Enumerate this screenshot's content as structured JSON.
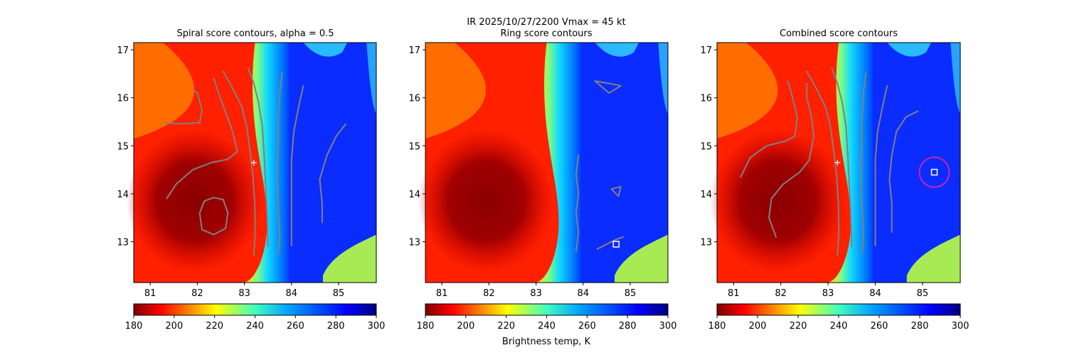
{
  "suptitle": "IR  2025/10/27/2200    Vmax = 45 kt",
  "colorbar_label": "Brightness temp, K",
  "chart_data": [
    {
      "type": "heatmap",
      "title": "Spiral score contours, alpha =  0.5",
      "xlim": [
        80.65,
        85.8
      ],
      "ylim": [
        12.15,
        17.15
      ],
      "xticks": [
        81,
        82,
        83,
        84,
        85
      ],
      "yticks": [
        13,
        14,
        15,
        16,
        17
      ],
      "colorbar": {
        "cmap": "jet_r",
        "range": [
          180,
          300
        ],
        "ticks": [
          180,
          200,
          220,
          240,
          260,
          280,
          300
        ]
      },
      "center_marker": {
        "shape": "plus",
        "x": 83.2,
        "y": 14.65
      },
      "contours": [
        [
          [
            81.35,
            13.9
          ],
          [
            81.55,
            14.2
          ],
          [
            81.9,
            14.5
          ],
          [
            82.3,
            14.65
          ],
          [
            82.65,
            14.72
          ],
          [
            82.85,
            14.88
          ],
          [
            82.75,
            15.3
          ],
          [
            82.6,
            15.7
          ],
          [
            82.45,
            16.1
          ],
          [
            82.35,
            16.4
          ]
        ],
        [
          [
            82.55,
            16.55
          ],
          [
            82.75,
            16.2
          ],
          [
            82.95,
            15.8
          ],
          [
            83.05,
            15.4
          ],
          [
            83.12,
            14.9
          ],
          [
            83.18,
            14.4
          ],
          [
            83.22,
            13.8
          ],
          [
            83.23,
            13.2
          ],
          [
            83.2,
            12.72
          ]
        ],
        [
          [
            83.08,
            16.62
          ],
          [
            83.2,
            16.3
          ],
          [
            83.3,
            15.9
          ],
          [
            83.38,
            15.4
          ],
          [
            83.42,
            14.8
          ],
          [
            83.45,
            14.2
          ],
          [
            83.48,
            13.6
          ],
          [
            83.5,
            12.9
          ]
        ],
        [
          [
            83.8,
            16.52
          ],
          [
            83.75,
            16.1
          ],
          [
            83.72,
            15.6
          ],
          [
            83.72,
            15.1
          ],
          [
            83.7,
            14.4
          ],
          [
            83.72,
            13.7
          ],
          [
            83.75,
            13.1
          ],
          [
            83.72,
            12.75
          ]
        ],
        [
          [
            84.25,
            16.25
          ],
          [
            84.15,
            15.8
          ],
          [
            84.05,
            15.3
          ],
          [
            84.0,
            14.7
          ],
          [
            84.0,
            14.1
          ],
          [
            84.0,
            13.5
          ],
          [
            84.0,
            12.92
          ]
        ],
        [
          [
            81.35,
            15.47
          ],
          [
            81.7,
            15.46
          ],
          [
            82.05,
            15.48
          ],
          [
            82.1,
            15.75
          ],
          [
            82.0,
            16.1
          ],
          [
            81.9,
            16.18
          ]
        ],
        [
          [
            82.35,
            13.92
          ],
          [
            82.55,
            13.88
          ],
          [
            82.65,
            13.6
          ],
          [
            82.6,
            13.28
          ],
          [
            82.35,
            13.15
          ],
          [
            82.1,
            13.25
          ],
          [
            82.05,
            13.6
          ],
          [
            82.15,
            13.85
          ],
          [
            82.35,
            13.92
          ]
        ],
        [
          [
            85.15,
            15.45
          ],
          [
            84.95,
            15.2
          ],
          [
            84.75,
            14.8
          ],
          [
            84.6,
            14.3
          ],
          [
            84.65,
            13.8
          ],
          [
            84.65,
            13.4
          ]
        ]
      ]
    },
    {
      "type": "heatmap",
      "title": "Ring score contours",
      "xlim": [
        80.65,
        85.8
      ],
      "ylim": [
        12.15,
        17.15
      ],
      "xticks": [
        81,
        82,
        83,
        84,
        85
      ],
      "yticks": [
        13,
        14,
        15,
        16,
        17
      ],
      "colorbar": {
        "cmap": "jet_r",
        "range": [
          180,
          300
        ],
        "ticks": [
          180,
          200,
          220,
          240,
          260,
          280,
          300
        ],
        "label": "Brightness temp, K"
      },
      "square_marker": {
        "x": 84.7,
        "y": 12.95
      },
      "contours": [
        [
          [
            84.3,
            12.85
          ],
          [
            84.5,
            12.95
          ],
          [
            84.7,
            13.05
          ],
          [
            84.85,
            13.1
          ]
        ],
        [
          [
            83.85,
            12.8
          ],
          [
            83.9,
            13.2
          ],
          [
            83.85,
            13.6
          ],
          [
            83.9,
            14.0
          ],
          [
            83.85,
            14.4
          ],
          [
            83.9,
            14.8
          ]
        ],
        [
          [
            84.25,
            16.35
          ],
          [
            84.55,
            16.3
          ],
          [
            84.8,
            16.25
          ],
          [
            84.55,
            16.1
          ],
          [
            84.25,
            16.35
          ]
        ],
        [
          [
            84.6,
            14.1
          ],
          [
            84.8,
            14.15
          ],
          [
            84.75,
            13.95
          ],
          [
            84.6,
            14.1
          ]
        ]
      ]
    },
    {
      "type": "heatmap",
      "title": "Combined score contours",
      "xlim": [
        80.65,
        85.8
      ],
      "ylim": [
        12.15,
        17.15
      ],
      "xticks": [
        81,
        82,
        83,
        84,
        85
      ],
      "yticks": [
        13,
        14,
        15,
        16,
        17
      ],
      "colorbar": {
        "cmap": "jet_r",
        "range": [
          180,
          300
        ],
        "ticks": [
          180,
          200,
          220,
          240,
          260,
          280,
          300
        ]
      },
      "center_marker": {
        "shape": "plus",
        "x": 83.2,
        "y": 14.65
      },
      "square_marker": {
        "x": 85.25,
        "y": 14.45
      },
      "circle_marker": {
        "x": 85.25,
        "y": 14.45,
        "color": "#cc22aa"
      },
      "contours": [
        [
          [
            81.15,
            14.35
          ],
          [
            81.35,
            14.75
          ],
          [
            81.7,
            15.0
          ],
          [
            82.1,
            15.1
          ],
          [
            82.3,
            15.2
          ],
          [
            82.35,
            15.6
          ],
          [
            82.25,
            16.0
          ],
          [
            82.15,
            16.35
          ]
        ],
        [
          [
            81.9,
            13.1
          ],
          [
            81.75,
            13.5
          ],
          [
            81.8,
            13.9
          ],
          [
            82.05,
            14.2
          ],
          [
            82.4,
            14.45
          ],
          [
            82.6,
            14.7
          ],
          [
            82.7,
            15.2
          ],
          [
            82.65,
            15.6
          ],
          [
            82.55,
            16.0
          ],
          [
            82.55,
            16.3
          ]
        ],
        [
          [
            82.55,
            16.55
          ],
          [
            82.75,
            16.2
          ],
          [
            82.95,
            15.8
          ],
          [
            83.05,
            15.4
          ],
          [
            83.12,
            14.9
          ],
          [
            83.18,
            14.4
          ],
          [
            83.22,
            13.8
          ],
          [
            83.23,
            13.2
          ],
          [
            83.2,
            12.72
          ]
        ],
        [
          [
            83.08,
            16.62
          ],
          [
            83.2,
            16.3
          ],
          [
            83.3,
            15.9
          ],
          [
            83.38,
            15.4
          ],
          [
            83.42,
            14.8
          ],
          [
            83.45,
            14.2
          ],
          [
            83.48,
            13.6
          ],
          [
            83.5,
            12.9
          ]
        ],
        [
          [
            83.8,
            16.52
          ],
          [
            83.75,
            16.1
          ],
          [
            83.72,
            15.6
          ],
          [
            83.72,
            15.1
          ],
          [
            83.7,
            14.4
          ],
          [
            83.72,
            13.7
          ],
          [
            83.75,
            13.1
          ],
          [
            83.72,
            12.75
          ]
        ],
        [
          [
            84.25,
            16.25
          ],
          [
            84.15,
            15.8
          ],
          [
            84.05,
            15.3
          ],
          [
            84.0,
            14.7
          ],
          [
            84.0,
            14.1
          ],
          [
            84.0,
            13.5
          ],
          [
            84.0,
            12.92
          ]
        ],
        [
          [
            84.9,
            15.72
          ],
          [
            84.65,
            15.6
          ],
          [
            84.45,
            15.3
          ],
          [
            84.35,
            14.8
          ],
          [
            84.3,
            14.3
          ],
          [
            84.35,
            13.8
          ],
          [
            84.35,
            13.2
          ]
        ]
      ]
    }
  ]
}
